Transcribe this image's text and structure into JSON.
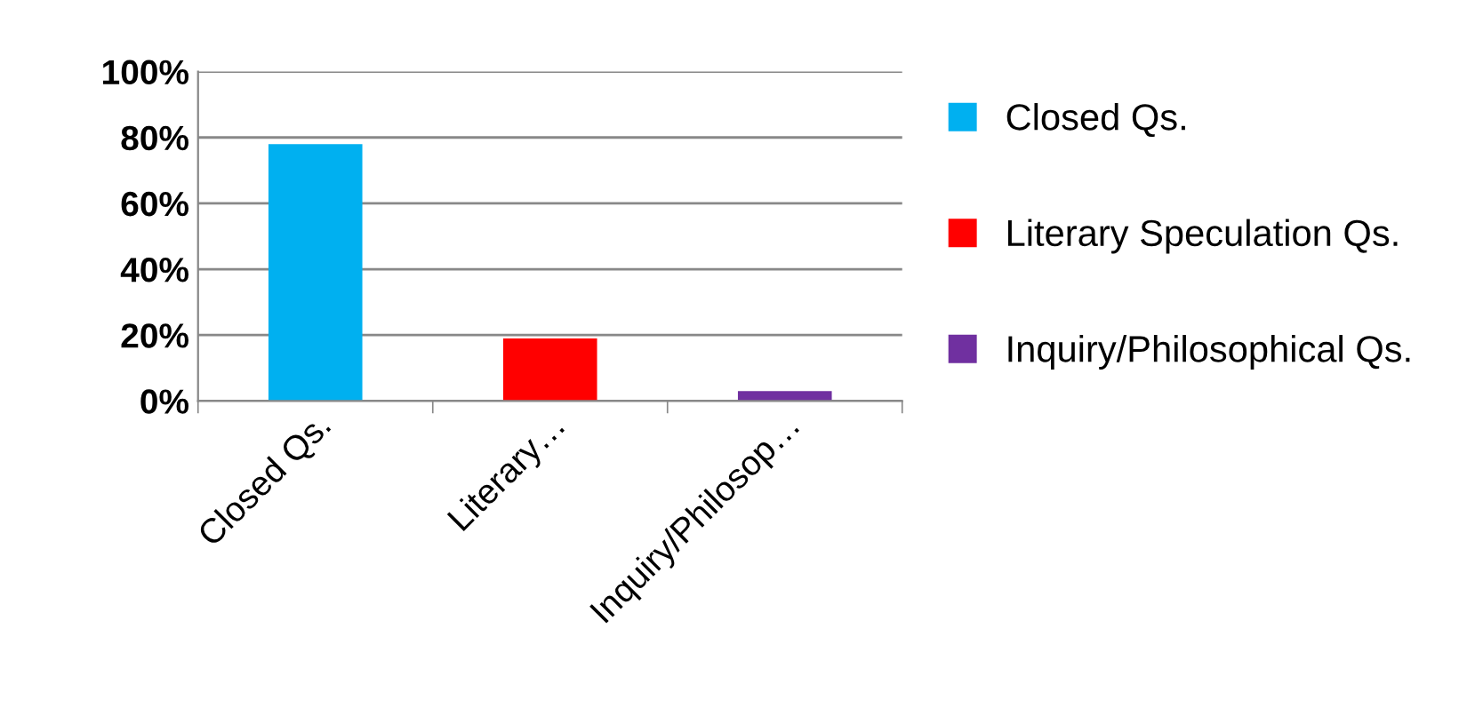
{
  "chart_data": {
    "type": "bar",
    "categories": [
      "Closed Qs.",
      "Literary…",
      "Inquiry/Philosop…"
    ],
    "series": [
      {
        "name": "Closed Qs.",
        "color": "#00b0f0",
        "values": [
          78,
          null,
          null
        ]
      },
      {
        "name": "Literary Speculation Qs.",
        "color": "#ff0000",
        "values": [
          null,
          19,
          null
        ]
      },
      {
        "name": "Inquiry/Philosophical Qs.",
        "color": "#7030a0",
        "values": [
          null,
          null,
          3
        ]
      }
    ],
    "ylim": [
      0,
      100
    ],
    "yticks": [
      {
        "value": 0,
        "label": "0%"
      },
      {
        "value": 20,
        "label": "20%"
      },
      {
        "value": 40,
        "label": "40%"
      },
      {
        "value": 60,
        "label": "60%"
      },
      {
        "value": 80,
        "label": "80%"
      },
      {
        "value": 100,
        "label": "100%"
      }
    ],
    "grid": "y",
    "legend": "right"
  }
}
